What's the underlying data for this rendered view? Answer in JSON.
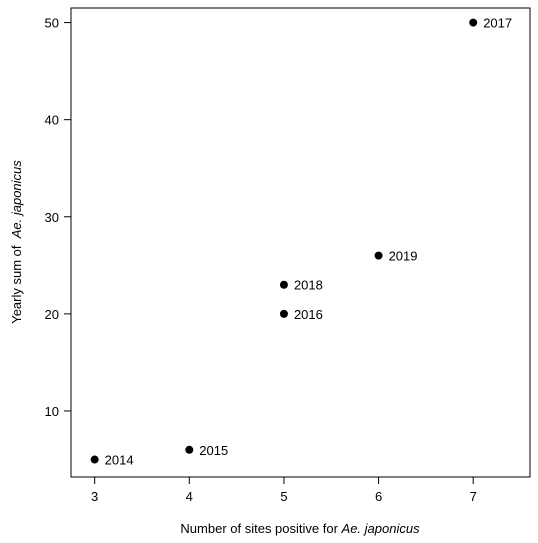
{
  "chart_data": {
    "type": "scatter",
    "title": "",
    "xlabel": {
      "prefix": "Number of sites positive for ",
      "species": "Ae. japonicus"
    },
    "ylabel": {
      "prefix": "Yearly sum of  ",
      "species": "Ae. japonicus"
    },
    "xlim": [
      2.75,
      7.6
    ],
    "ylim": [
      3.2,
      51.5
    ],
    "x_ticks": [
      3,
      4,
      5,
      6,
      7
    ],
    "y_ticks": [
      10,
      20,
      30,
      40,
      50
    ],
    "grid": false,
    "legend": "none",
    "points": [
      {
        "x": 3,
        "y": 5,
        "label": "2014"
      },
      {
        "x": 4,
        "y": 6,
        "label": "2015"
      },
      {
        "x": 5,
        "y": 20,
        "label": "2016"
      },
      {
        "x": 7,
        "y": 50,
        "label": "2017"
      },
      {
        "x": 5,
        "y": 23,
        "label": "2018"
      },
      {
        "x": 6,
        "y": 26,
        "label": "2019"
      }
    ],
    "colors": {
      "point": "#000000",
      "axis": "#000000"
    }
  }
}
